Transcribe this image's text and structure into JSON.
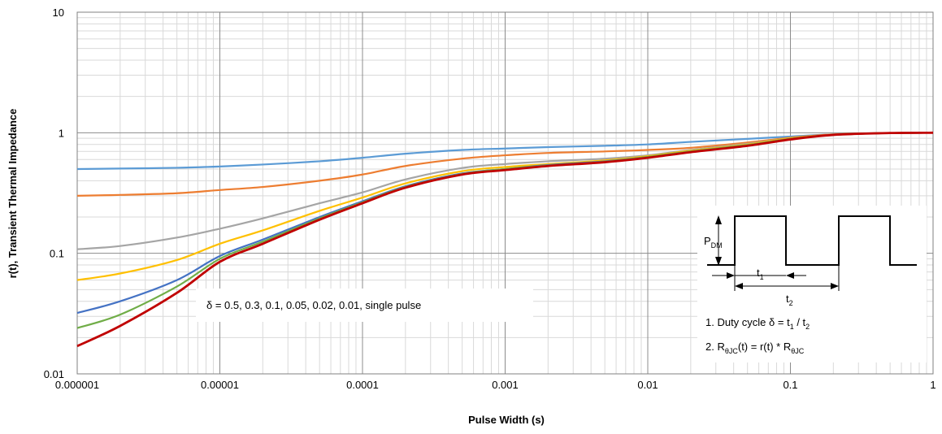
{
  "chart_data": {
    "type": "line",
    "xlabel": "Pulse Width (s)",
    "ylabel": "r(t), Transient Thermal Impedance",
    "xscale": "log",
    "yscale": "log",
    "xlim": [
      1e-06,
      1
    ],
    "ylim": [
      0.01,
      10
    ],
    "grid": true,
    "x_ticks": [
      "0.000001",
      "0.00001",
      "0.0001",
      "0.001",
      "0.01",
      "0.1",
      "1"
    ],
    "y_ticks": [
      "0.01",
      "0.1",
      "1",
      "10"
    ],
    "x": [
      1e-06,
      2e-06,
      5e-06,
      1e-05,
      2e-05,
      5e-05,
      0.0001,
      0.0002,
      0.0005,
      0.001,
      0.002,
      0.005,
      0.01,
      0.02,
      0.05,
      0.1,
      0.2,
      0.5,
      1
    ],
    "series": [
      {
        "color": "#5B9BD5",
        "values": [
          0.5,
          0.505,
          0.512,
          0.525,
          0.545,
          0.58,
          0.62,
          0.67,
          0.72,
          0.74,
          0.76,
          0.78,
          0.8,
          0.84,
          0.89,
          0.93,
          0.97,
          0.995,
          1.0
        ]
      },
      {
        "color": "#ED7D31",
        "values": [
          0.3,
          0.305,
          0.315,
          0.335,
          0.355,
          0.4,
          0.45,
          0.53,
          0.61,
          0.65,
          0.68,
          0.7,
          0.72,
          0.75,
          0.83,
          0.91,
          0.97,
          0.995,
          1.0
        ]
      },
      {
        "color": "#A5A5A5",
        "values": [
          0.108,
          0.115,
          0.135,
          0.16,
          0.195,
          0.26,
          0.32,
          0.41,
          0.51,
          0.55,
          0.58,
          0.61,
          0.65,
          0.72,
          0.81,
          0.9,
          0.96,
          0.995,
          1.0
        ]
      },
      {
        "color": "#FFC000",
        "values": [
          0.06,
          0.068,
          0.088,
          0.12,
          0.155,
          0.225,
          0.29,
          0.38,
          0.48,
          0.52,
          0.55,
          0.59,
          0.64,
          0.71,
          0.8,
          0.9,
          0.96,
          0.995,
          1.0
        ]
      },
      {
        "color": "#4472C4",
        "values": [
          0.032,
          0.04,
          0.06,
          0.095,
          0.13,
          0.2,
          0.27,
          0.36,
          0.46,
          0.5,
          0.54,
          0.58,
          0.63,
          0.7,
          0.79,
          0.89,
          0.96,
          0.995,
          1.0
        ]
      },
      {
        "color": "#70AD47",
        "values": [
          0.024,
          0.031,
          0.053,
          0.09,
          0.125,
          0.195,
          0.265,
          0.355,
          0.455,
          0.5,
          0.535,
          0.575,
          0.63,
          0.7,
          0.79,
          0.89,
          0.96,
          0.995,
          1.0
        ]
      },
      {
        "color": "#C00000",
        "values": [
          0.017,
          0.025,
          0.047,
          0.085,
          0.12,
          0.19,
          0.26,
          0.35,
          0.45,
          0.49,
          0.53,
          0.57,
          0.62,
          0.69,
          0.78,
          0.88,
          0.96,
          0.995,
          1.0
        ]
      }
    ],
    "legend_text": "δ = 0.5, 0.3, 0.1, 0.05, 0.02, 0.01, single pulse",
    "inset": {
      "p_label": "P",
      "p_sub": "DM",
      "t1_label": "t",
      "t1_sub": "1",
      "t2_label": "t",
      "t2_sub": "2",
      "note1_prefix": "1. Duty cycle  δ = t",
      "note1_sub1": "1",
      "note1_mid": " / t",
      "note1_sub2": "2",
      "note2_prefix": "2. R",
      "note2_sub1": "θJC",
      "note2_mid": "(t) = r(t) * R",
      "note2_sub2": "θJC"
    }
  }
}
